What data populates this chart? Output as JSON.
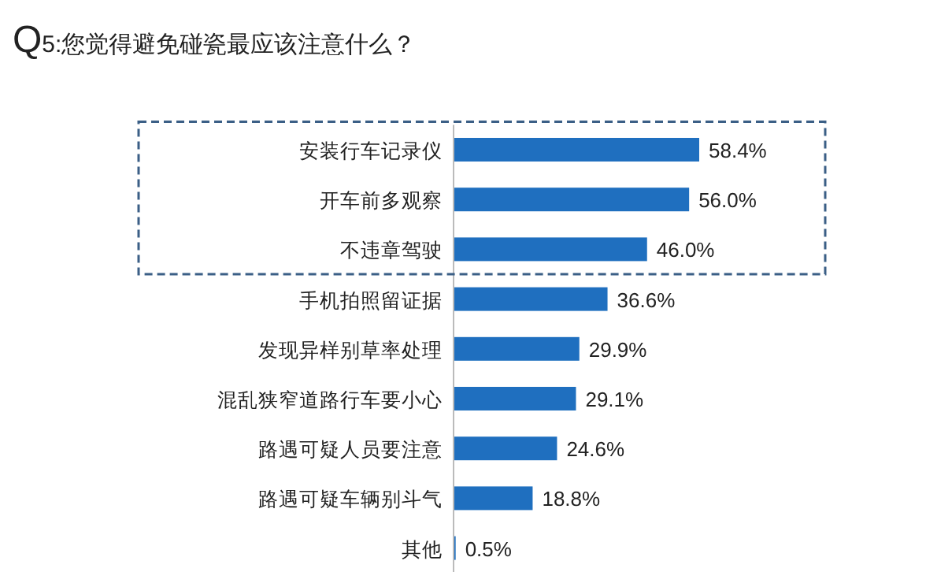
{
  "chart_data": {
    "type": "bar",
    "orientation": "horizontal",
    "title": "Q5:您觉得避免碰瓷最应该注意什么？",
    "categories": [
      "安装行车记录仪",
      "开车前多观察",
      "不违章驾驶",
      "手机拍照留证据",
      "发现异样别草率处理",
      "混乱狭窄道路行车要小心",
      "路遇可疑人员要注意",
      "路遇可疑车辆别斗气",
      "其他"
    ],
    "series": [
      {
        "color": "#1f6fbf",
        "values": [
          58.4,
          56.0,
          46.0,
          36.6,
          29.9,
          29.1,
          24.6,
          18.8,
          0.5
        ],
        "value_labels": [
          "58.4%",
          "56.0%",
          "46.0%",
          "36.6%",
          "29.9%",
          "29.1%",
          "24.6%",
          "18.8%",
          "0.5%"
        ]
      }
    ]
  }
}
